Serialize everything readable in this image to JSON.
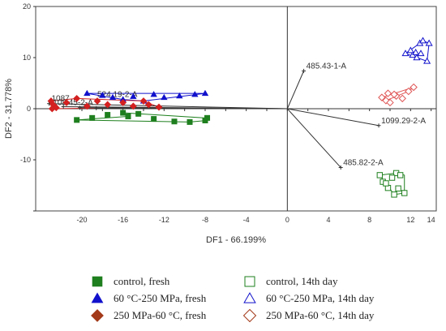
{
  "chart_data": {
    "type": "scatter",
    "xlabel": "DF1 - 66.199%",
    "ylabel": "DF2 - 31.778%",
    "xlim": [
      -24.5,
      14.5
    ],
    "ylim": [
      -20,
      20
    ],
    "x_ticks": [
      -20,
      -18,
      -16,
      -14,
      -12,
      -10,
      -8,
      -6,
      -4,
      -2,
      0,
      2,
      4,
      6,
      8,
      10,
      12,
      14
    ],
    "x_tick_labels": [
      "-20",
      "",
      "-16",
      "",
      "-12",
      "",
      "-8",
      "",
      "-4",
      "",
      "0",
      "",
      "4",
      "",
      "8",
      "",
      "12",
      "14"
    ],
    "y_ticks": [
      -20,
      -10,
      0,
      10,
      20
    ],
    "y_tick_labels": [
      "",
      "-10",
      "0",
      "10",
      "20"
    ],
    "grid": false,
    "legend_position": "bottom",
    "series": [
      {
        "name": "control, fresh",
        "marker": "square",
        "filled": true,
        "color": "#1e7f1e",
        "x": [
          -20.5,
          -19.0,
          -17.5,
          -16.0,
          -14.5,
          -13.0,
          -11.0,
          -9.5,
          -8.0,
          -7.8,
          -15.5
        ],
        "y": [
          -2.2,
          -1.8,
          -1.2,
          -0.8,
          -1.0,
          -2.0,
          -2.5,
          -2.6,
          -2.3,
          -1.8,
          -1.5
        ]
      },
      {
        "name": "60 °C-250 MPa, fresh",
        "marker": "triangle-up",
        "filled": true,
        "color": "#1111cc",
        "x": [
          -19.5,
          -18.0,
          -17.0,
          -16.0,
          -15.0,
          -14.0,
          -13.0,
          -12.0,
          -10.5,
          -9.0,
          -8.0
        ],
        "y": [
          3.0,
          2.6,
          2.2,
          1.8,
          2.4,
          1.5,
          2.8,
          2.2,
          2.5,
          2.8,
          3.0
        ]
      },
      {
        "name": "250 MPa-60 °C, fresh",
        "marker": "diamond",
        "filled": true,
        "color": "#d42020",
        "x": [
          -23.0,
          -22.8,
          -22.5,
          -21.5,
          -20.5,
          -19.5,
          -18.5,
          -17.5,
          -16.0,
          -15.0,
          -14.0,
          -13.5,
          -12.5,
          -22.9
        ],
        "y": [
          1.5,
          0.8,
          0.2,
          1.2,
          2.0,
          0.5,
          1.5,
          0.8,
          1.2,
          0.5,
          1.5,
          0.8,
          0.3,
          0.0
        ]
      },
      {
        "name": "control, 14th day",
        "marker": "square",
        "filled": false,
        "color": "#1e7f1e",
        "x": [
          9.0,
          9.3,
          9.8,
          10.4,
          10.6,
          11.0,
          11.4,
          9.6,
          10.2,
          10.8
        ],
        "y": [
          -13.0,
          -14.3,
          -15.5,
          -16.8,
          -12.6,
          -13.0,
          -16.5,
          -14.6,
          -13.5,
          -15.6
        ]
      },
      {
        "name": "60 °C-250 MPa, 14th day",
        "marker": "triangle-up",
        "filled": false,
        "color": "#1111cc",
        "x": [
          11.5,
          12.2,
          12.9,
          13.2,
          13.8,
          13.6,
          12.5,
          13.0,
          12.0,
          12.6
        ],
        "y": [
          10.8,
          10.5,
          12.8,
          13.3,
          12.8,
          9.3,
          11.0,
          10.8,
          11.4,
          10.0
        ]
      },
      {
        "name": "250 MPa-60 °C, 14th day",
        "marker": "diamond",
        "filled": false,
        "color": "#e05555",
        "x": [
          9.2,
          9.6,
          10.0,
          10.6,
          11.2,
          11.8,
          12.3,
          9.8,
          10.4
        ],
        "y": [
          2.2,
          1.6,
          1.2,
          2.5,
          2.0,
          3.4,
          4.2,
          3.0,
          2.8
        ]
      }
    ],
    "hulls": [
      {
        "color": "#1e7f1e",
        "points": [
          [
            -20.5,
            -2.2
          ],
          [
            -15.5,
            -1.5
          ],
          [
            -16.0,
            -0.8
          ],
          [
            -8.0,
            -1.8
          ],
          [
            -7.8,
            -2.3
          ],
          [
            -9.5,
            -2.6
          ],
          [
            -20.5,
            -2.2
          ]
        ]
      },
      {
        "color": "#1111cc",
        "points": [
          [
            -19.5,
            3.0
          ],
          [
            -8.0,
            3.0
          ],
          [
            -14.0,
            1.5
          ],
          [
            -16.0,
            1.8
          ],
          [
            -19.5,
            3.0
          ]
        ]
      },
      {
        "color": "#d42020",
        "points": [
          [
            -23.0,
            1.5
          ],
          [
            -20.5,
            2.0
          ],
          [
            -14.0,
            1.5
          ],
          [
            -12.5,
            0.3
          ],
          [
            -22.9,
            0.0
          ],
          [
            -23.0,
            1.5
          ]
        ]
      },
      {
        "color": "#1e7f1e",
        "points": [
          [
            9.0,
            -13.0
          ],
          [
            10.6,
            -12.6
          ],
          [
            11.4,
            -13.0
          ],
          [
            11.4,
            -16.5
          ],
          [
            10.4,
            -16.8
          ],
          [
            9.0,
            -13.0
          ]
        ]
      },
      {
        "color": "#1111cc",
        "points": [
          [
            11.5,
            10.8
          ],
          [
            12.9,
            12.8
          ],
          [
            13.2,
            13.3
          ],
          [
            13.8,
            12.8
          ],
          [
            13.6,
            9.3
          ],
          [
            11.5,
            10.8
          ]
        ]
      },
      {
        "color": "#e05555",
        "points": [
          [
            9.2,
            2.2
          ],
          [
            12.3,
            4.2
          ],
          [
            11.8,
            3.4
          ],
          [
            9.6,
            1.6
          ],
          [
            9.2,
            2.2
          ]
        ]
      }
    ],
    "vectors": [
      {
        "label": "485.43-1-A",
        "x": 1.6,
        "y": 7.4
      },
      {
        "label": "1099.29-2-A",
        "x": 8.9,
        "y": -3.3
      },
      {
        "label": "485.82-2-A",
        "x": 5.2,
        "y": -11.5
      },
      {
        "label": "1087",
        "x": -23.2,
        "y": 1.0
      },
      {
        "label": "",
        "x": -21.8,
        "y": 0.4
      },
      {
        "label": "",
        "x": -20.2,
        "y": 0.2
      },
      {
        "label": "",
        "x": -18.6,
        "y": 0.1
      }
    ],
    "overlapping_labels": [
      {
        "text": "524.19-2-A",
        "x": -18.5,
        "y": 2.0
      },
      {
        "text": "1108.45-2-A",
        "x": -23.2,
        "y": 0.4
      }
    ]
  },
  "legend": [
    {
      "label": "control, fresh",
      "marker": "square",
      "filled": true,
      "color": "#1e7f1e"
    },
    {
      "label": "control, 14th day",
      "marker": "square",
      "filled": false,
      "color": "#1e7f1e"
    },
    {
      "label": "60 °C-250 MPa, fresh",
      "marker": "triangle-up",
      "filled": true,
      "color": "#1111cc"
    },
    {
      "label": "60 °C-250 MPa, 14th day",
      "marker": "triangle-up",
      "filled": false,
      "color": "#1111cc"
    },
    {
      "label": "250 MPa-60 °C, fresh",
      "marker": "diamond",
      "filled": true,
      "color": "#a33a1a"
    },
    {
      "label": "250 MPa-60 °C, 14th day",
      "marker": "diamond",
      "filled": false,
      "color": "#a33a1a"
    }
  ]
}
